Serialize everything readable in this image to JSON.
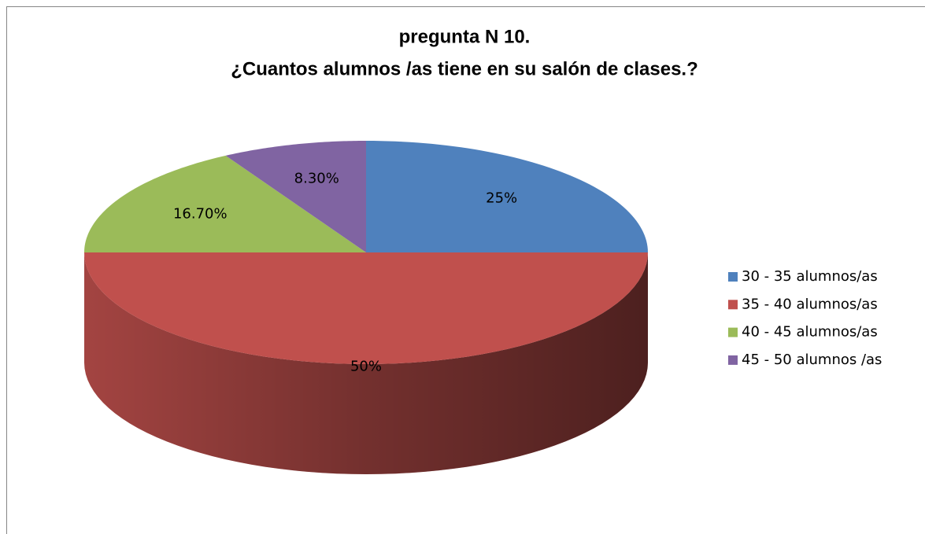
{
  "chart_data": {
    "type": "pie3d",
    "title": [
      "pregunta N  10.",
      "¿Cuantos alumnos /as tiene en su salón de clases.?"
    ],
    "categories": [
      "30 - 35 alumnos/as",
      "35 - 40 alumnos/as",
      "40 - 45 alumnos/as",
      "45 - 50 alumnos /as"
    ],
    "values": [
      25,
      50,
      16.7,
      8.3
    ],
    "value_labels": [
      "25%",
      "50%",
      "16.70%",
      "8.30%"
    ],
    "colors": [
      "#4f81bd",
      "#c0504d",
      "#9bbb59",
      "#8064a2"
    ],
    "legend": "right"
  }
}
